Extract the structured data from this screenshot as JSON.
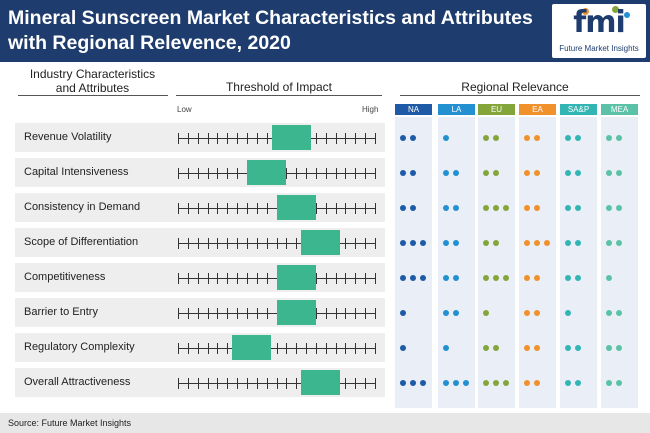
{
  "title": "Mineral Sunscreen Market Characteristics and Attributes with Regional Relevence, 2020",
  "logo": {
    "mark": "fmi",
    "name": "Future Market Insights"
  },
  "headers": {
    "industry": "Industry Characteristics and Attributes",
    "threshold": "Threshold of Impact",
    "regional": "Regional Relevance",
    "low": "Low",
    "high": "High"
  },
  "source": "Source: Future Market Insights",
  "colors": {
    "header_bg": "#1e3d6e",
    "bar": "#3bb68e",
    "NA": "#1f5aa6",
    "LA": "#2390d1",
    "EU": "#84a539",
    "EA": "#f0912b",
    "SAP": "#33b5b3",
    "MEA": "#5bc2a8"
  },
  "chart_data": {
    "type": "table",
    "title": "Mineral Sunscreen Market Characteristics and Attributes with Regional Relevence, 2020",
    "scale_ticks": 20,
    "regions": [
      {
        "key": "NA",
        "label": "NA"
      },
      {
        "key": "LA",
        "label": "LA"
      },
      {
        "key": "EU",
        "label": "EU"
      },
      {
        "key": "EA",
        "label": "EA"
      },
      {
        "key": "SAP",
        "label": "SA&P"
      },
      {
        "key": "MEA",
        "label": "MEA"
      }
    ],
    "rows": [
      {
        "label": "Revenue Volatility",
        "impact": [
          9.5,
          13.5
        ],
        "relevance": [
          2,
          1,
          2,
          2,
          2,
          2
        ]
      },
      {
        "label": "Capital Intensiveness",
        "impact": [
          7.0,
          11.0
        ],
        "relevance": [
          2,
          2,
          2,
          2,
          2,
          2
        ]
      },
      {
        "label": "Consistency in Demand",
        "impact": [
          10.0,
          14.0
        ],
        "relevance": [
          2,
          2,
          3,
          2,
          2,
          2
        ]
      },
      {
        "label": "Scope of Differentiation",
        "impact": [
          12.5,
          16.5
        ],
        "relevance": [
          3,
          2,
          2,
          3,
          2,
          2
        ]
      },
      {
        "label": "Competitiveness",
        "impact": [
          10.0,
          14.0
        ],
        "relevance": [
          3,
          2,
          3,
          2,
          2,
          1
        ]
      },
      {
        "label": "Barrier to Entry",
        "impact": [
          10.0,
          14.0
        ],
        "relevance": [
          1,
          2,
          1,
          2,
          1,
          2
        ]
      },
      {
        "label": "Regulatory Complexity",
        "impact": [
          5.5,
          9.5
        ],
        "relevance": [
          1,
          1,
          2,
          2,
          2,
          2
        ]
      },
      {
        "label": "Overall Attractiveness",
        "impact": [
          12.5,
          16.5
        ],
        "relevance": [
          3,
          3,
          3,
          2,
          2,
          2
        ]
      }
    ]
  }
}
